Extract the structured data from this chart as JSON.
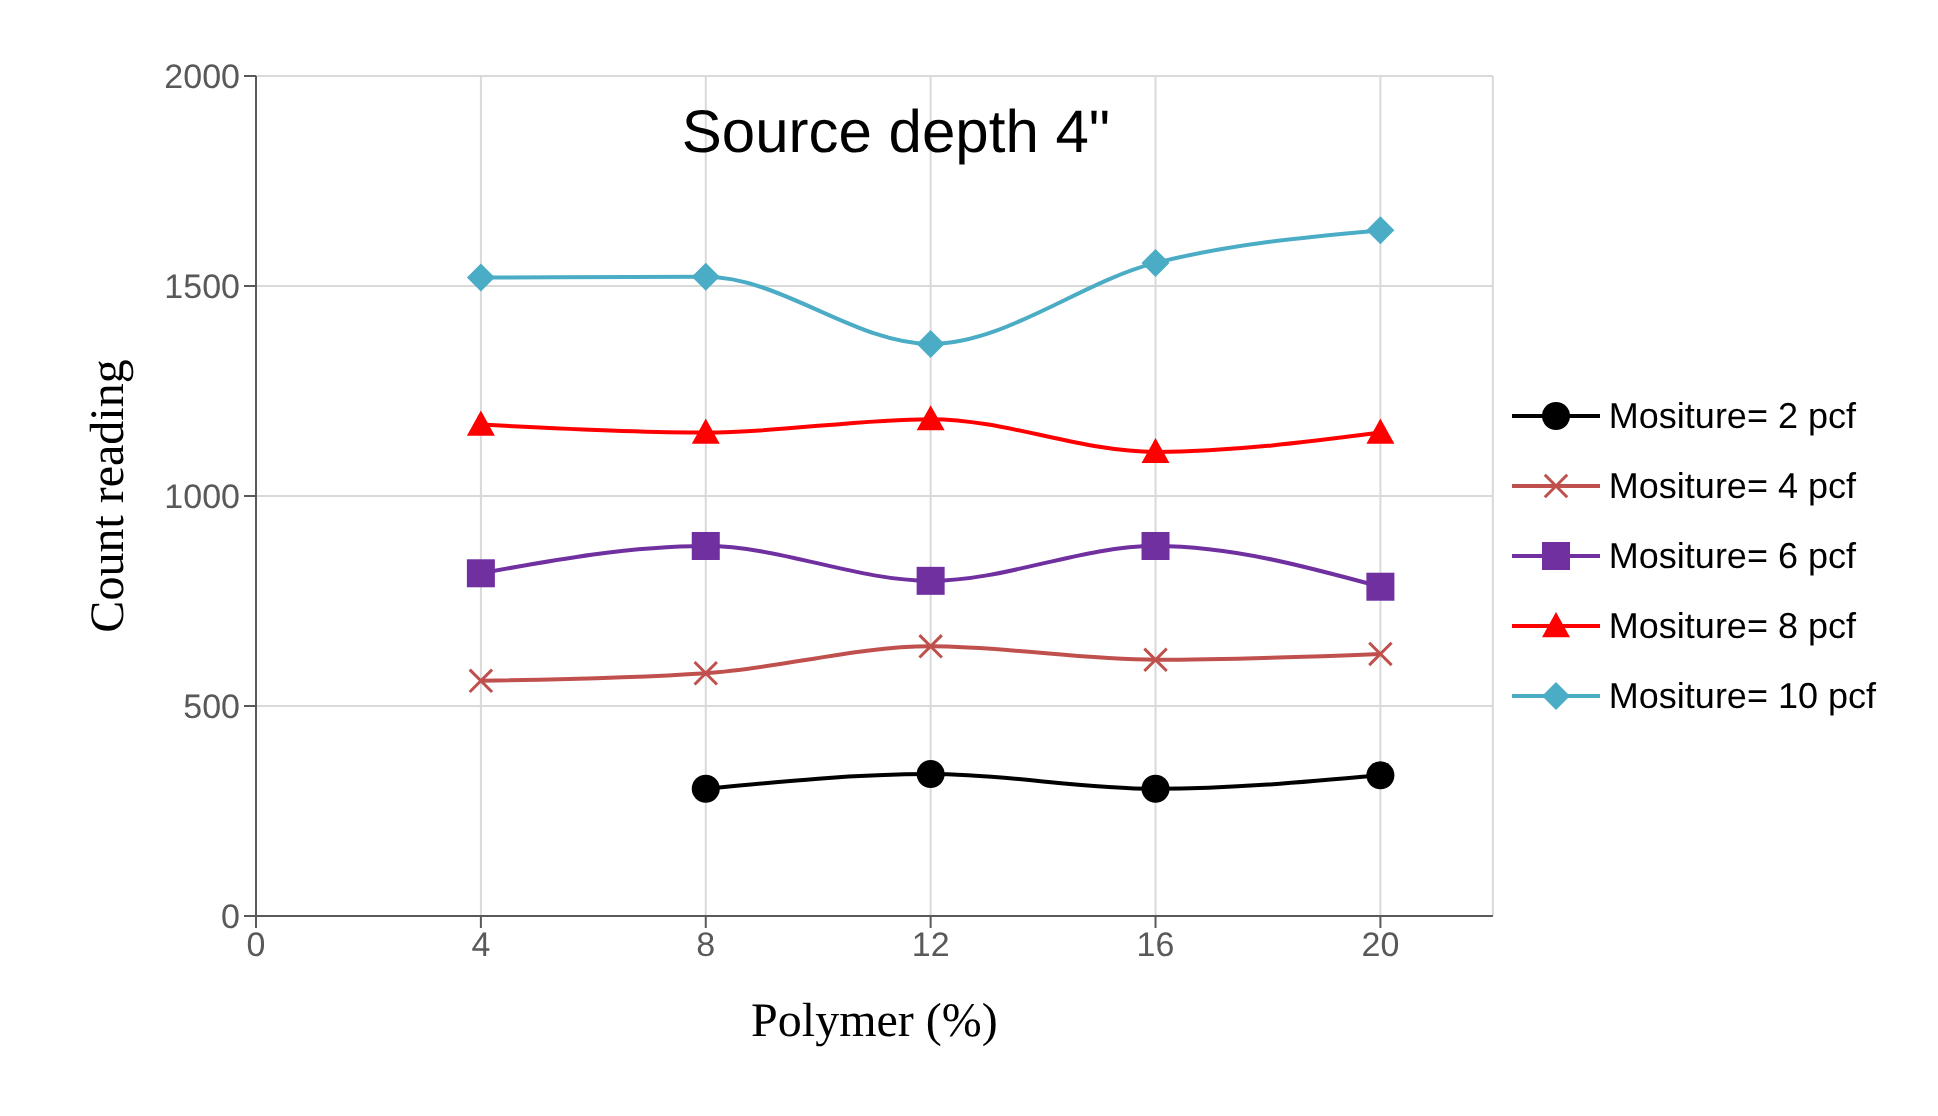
{
  "chart_data": {
    "type": "line",
    "title": "Source depth 4\"",
    "xlabel": "Polymer (%)",
    "ylabel": "Count reading",
    "x": [
      4,
      8,
      12,
      16,
      20
    ],
    "xlim": [
      0,
      22
    ],
    "xticks": [
      0,
      4,
      8,
      12,
      16,
      20
    ],
    "ylim": [
      0,
      2000
    ],
    "yticks": [
      0,
      500,
      1000,
      1500,
      2000
    ],
    "grid": true,
    "legend": "right",
    "series": [
      {
        "name": "Mositure= 2 pcf",
        "color": "#000000",
        "marker": "circle",
        "values": [
          null,
          303,
          338,
          303,
          335
        ]
      },
      {
        "name": "Mositure= 4 pcf",
        "color": "#c0504d",
        "marker": "cross",
        "values": [
          560,
          578,
          642,
          610,
          624
        ]
      },
      {
        "name": "Mositure= 6 pcf",
        "color": "#7030a0",
        "marker": "square",
        "values": [
          816,
          881,
          798,
          881,
          784
        ]
      },
      {
        "name": "Mositure= 8 pcf",
        "color": "#ff0000",
        "marker": "triangle",
        "values": [
          1170,
          1151,
          1183,
          1105,
          1151
        ]
      },
      {
        "name": "Mositure= 10 pcf",
        "color": "#4bacc6",
        "marker": "diamond",
        "values": [
          1520,
          1522,
          1362,
          1555,
          1633
        ]
      }
    ]
  }
}
